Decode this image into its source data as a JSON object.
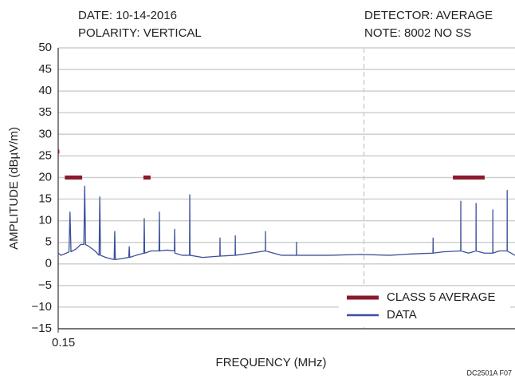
{
  "chart_data": {
    "type": "line",
    "header": [
      "DATE: 10-14-2016",
      "POLARITY: VERTICAL",
      "DETECTOR: AVERAGE",
      "NOTE: 8002 NO SS"
    ],
    "xlabel": "FREQUENCY (MHz)",
    "ylabel": "AMPLITUDE (dBµV/m)",
    "footnote": "DC2501A F07",
    "xscale": "log",
    "xlim": [
      0.15,
      30
    ],
    "xticks": [
      0.15
    ],
    "vlines": [
      5.2
    ],
    "ylim": [
      -15,
      50
    ],
    "yticks": [
      {
        "value": -15,
        "label": "−15"
      },
      {
        "value": -10,
        "label": "−10"
      },
      {
        "value": -5,
        "label": "−5"
      },
      0,
      5,
      10,
      15,
      20,
      25,
      30,
      35,
      40,
      45,
      50
    ],
    "grid": true,
    "legend": "lower right",
    "series": [
      {
        "name": "CLASS 5 AVERAGE",
        "color": "#8b1a2e",
        "x": [
          0.15,
          0.152,
          0.157,
          0.162,
          0.198,
          0.3,
          0.403,
          0.438,
          5,
          14.6,
          21.1
        ],
        "values": [
          26,
          26,
          null,
          20,
          20,
          null,
          20,
          20,
          null,
          20,
          20
        ]
      },
      {
        "name": "DATA",
        "color": "#3b4f9c",
        "x": [
          0.15,
          0.155,
          0.165,
          0.17,
          0.172,
          0.174,
          0.185,
          0.195,
          0.202,
          0.204,
          0.206,
          0.215,
          0.23,
          0.241,
          0.243,
          0.245,
          0.26,
          0.287,
          0.289,
          0.291,
          0.31,
          0.34,
          0.342,
          0.344,
          0.37,
          0.405,
          0.407,
          0.409,
          0.44,
          0.483,
          0.485,
          0.487,
          0.53,
          0.577,
          0.579,
          0.581,
          0.63,
          0.688,
          0.69,
          0.692,
          0.8,
          0.978,
          0.98,
          0.982,
          1.168,
          1.17,
          1.172,
          1.4,
          1.658,
          1.66,
          1.662,
          2.0,
          2.378,
          2.38,
          2.382,
          3.5,
          5,
          7,
          9,
          11.58,
          11.6,
          11.62,
          13,
          15.98,
          16.0,
          16.02,
          17.5,
          19.08,
          19.1,
          19.12,
          21,
          23.18,
          23.2,
          23.22,
          25,
          27.38,
          27.4,
          27.42,
          30
        ],
        "values": [
          2.5,
          2,
          2.5,
          2.8,
          12,
          2.8,
          3.5,
          4.5,
          4.5,
          18,
          4.5,
          4,
          3,
          2,
          15.5,
          2,
          1.5,
          1,
          7.5,
          1,
          1.2,
          1.5,
          4,
          1.5,
          2,
          2.5,
          10.5,
          2.5,
          3,
          3,
          12,
          3,
          3.2,
          3,
          8,
          2.5,
          2,
          2,
          16,
          2,
          1.5,
          1.8,
          6,
          1.8,
          2,
          6.5,
          2,
          2.5,
          3,
          7.5,
          3,
          2,
          2,
          5,
          2,
          2,
          2.2,
          2,
          2.3,
          2.5,
          6,
          2.5,
          2.8,
          3,
          14.5,
          3,
          2.5,
          3,
          14,
          3,
          2.5,
          2.5,
          12.5,
          2.5,
          3,
          3,
          17,
          3,
          2
        ]
      }
    ]
  }
}
